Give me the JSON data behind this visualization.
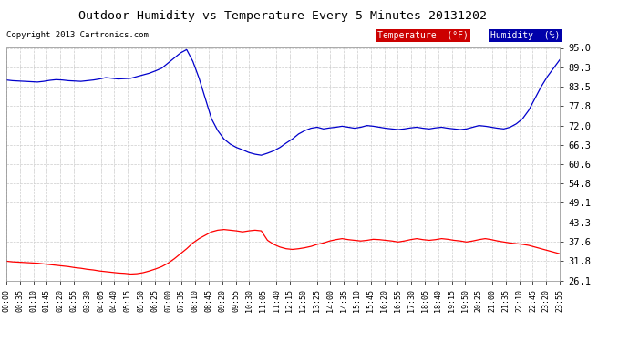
{
  "title": "Outdoor Humidity vs Temperature Every 5 Minutes 20131202",
  "copyright": "Copyright 2013 Cartronics.com",
  "legend_temp": "Temperature  (°F)",
  "legend_hum": "Humidity  (%)",
  "temp_color": "#ff0000",
  "hum_color": "#0000cc",
  "temp_bg": "#cc0000",
  "hum_bg": "#0000aa",
  "bg_color": "#ffffff",
  "grid_color": "#cccccc",
  "ylim": [
    26.1,
    95.0
  ],
  "yticks": [
    26.1,
    31.8,
    37.6,
    43.3,
    49.1,
    54.8,
    60.6,
    66.3,
    72.0,
    77.8,
    83.5,
    89.3,
    95.0
  ],
  "xtick_labels": [
    "00:00",
    "00:35",
    "01:10",
    "01:45",
    "02:20",
    "02:55",
    "03:30",
    "04:05",
    "04:40",
    "05:15",
    "05:50",
    "06:25",
    "07:00",
    "07:35",
    "08:10",
    "08:45",
    "09:20",
    "09:55",
    "10:30",
    "11:05",
    "11:40",
    "12:15",
    "12:50",
    "13:25",
    "14:00",
    "14:35",
    "15:10",
    "15:45",
    "16:20",
    "16:55",
    "17:30",
    "18:05",
    "18:40",
    "19:15",
    "19:50",
    "20:25",
    "21:00",
    "21:35",
    "22:10",
    "22:45",
    "23:20",
    "23:55"
  ],
  "humidity_data": [
    85.5,
    85.3,
    85.2,
    85.1,
    85.0,
    84.9,
    85.1,
    85.4,
    85.6,
    85.5,
    85.3,
    85.2,
    85.1,
    85.3,
    85.5,
    85.8,
    86.2,
    86.0,
    85.8,
    85.9,
    86.0,
    86.5,
    87.0,
    87.5,
    88.2,
    89.0,
    90.5,
    92.0,
    93.5,
    94.5,
    91.0,
    86.0,
    80.0,
    74.0,
    70.5,
    68.0,
    66.5,
    65.5,
    64.8,
    64.0,
    63.5,
    63.2,
    63.8,
    64.5,
    65.5,
    66.8,
    68.0,
    69.5,
    70.5,
    71.2,
    71.5,
    71.0,
    71.3,
    71.5,
    71.8,
    71.5,
    71.2,
    71.5,
    72.0,
    71.8,
    71.5,
    71.2,
    71.0,
    70.8,
    71.0,
    71.3,
    71.5,
    71.2,
    71.0,
    71.3,
    71.5,
    71.2,
    71.0,
    70.8,
    71.0,
    71.5,
    72.0,
    71.8,
    71.5,
    71.2,
    71.0,
    71.5,
    72.5,
    74.0,
    76.5,
    80.0,
    83.5,
    86.5,
    89.0,
    91.5
  ],
  "temperature_data": [
    31.8,
    31.6,
    31.5,
    31.4,
    31.3,
    31.2,
    31.0,
    30.8,
    30.6,
    30.4,
    30.2,
    29.9,
    29.7,
    29.4,
    29.2,
    28.9,
    28.7,
    28.5,
    28.3,
    28.2,
    28.0,
    28.1,
    28.4,
    28.9,
    29.5,
    30.2,
    31.2,
    32.5,
    34.0,
    35.5,
    37.2,
    38.5,
    39.5,
    40.5,
    41.0,
    41.2,
    41.0,
    40.8,
    40.5,
    40.8,
    41.0,
    40.8,
    38.0,
    36.8,
    36.0,
    35.5,
    35.3,
    35.5,
    35.8,
    36.2,
    36.8,
    37.2,
    37.8,
    38.2,
    38.5,
    38.2,
    38.0,
    37.8,
    38.0,
    38.3,
    38.2,
    38.0,
    37.8,
    37.5,
    37.8,
    38.2,
    38.5,
    38.2,
    38.0,
    38.2,
    38.5,
    38.3,
    38.0,
    37.8,
    37.5,
    37.8,
    38.2,
    38.5,
    38.2,
    37.8,
    37.5,
    37.2,
    37.0,
    36.8,
    36.5,
    36.0,
    35.5,
    35.0,
    34.5,
    34.0
  ]
}
